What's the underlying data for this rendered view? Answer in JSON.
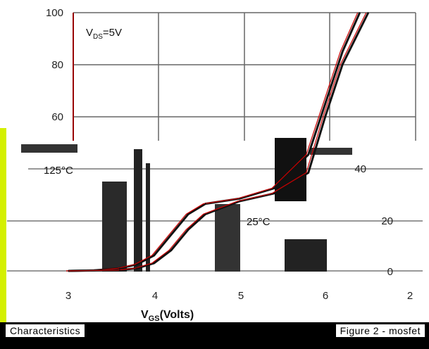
{
  "chart_data": {
    "type": "line",
    "title": "",
    "xlabel": "V_GS(Volts)",
    "ylabel": "",
    "xlim": [
      2.5,
      7.0
    ],
    "ylim": [
      0,
      100
    ],
    "x_ticks": [
      3,
      4,
      5,
      6
    ],
    "y_ticks": [
      60,
      80,
      100
    ],
    "y_ticks_right": [
      0,
      20,
      40
    ],
    "grid": true,
    "annotations": [
      {
        "text": "V_DS=5V"
      },
      {
        "text": "125°C"
      },
      {
        "text": "25°C"
      },
      {
        "text": "2"
      }
    ],
    "series": [
      {
        "name": "125°C",
        "color": "#111111",
        "x": [
          3.0,
          3.3,
          3.6,
          3.8,
          4.0,
          4.2,
          4.4,
          4.6,
          5.0,
          5.4,
          5.8,
          6.0,
          6.2,
          6.4
        ],
        "y": [
          0,
          0.2,
          1,
          2.5,
          6,
          14,
          22,
          26,
          28,
          32,
          45,
          65,
          85,
          100
        ]
      },
      {
        "name": "25°C",
        "color": "#111111",
        "x": [
          3.0,
          3.6,
          3.8,
          4.0,
          4.2,
          4.4,
          4.6,
          5.0,
          5.4,
          5.8,
          6.0,
          6.2,
          6.5
        ],
        "y": [
          0,
          0.3,
          1,
          3,
          8,
          16,
          22,
          27,
          30,
          38,
          60,
          80,
          100
        ]
      }
    ]
  },
  "text": {
    "y100": "100",
    "y80": "80",
    "y60": "60",
    "y40": "40",
    "y20": "20",
    "y0": "0",
    "x3": "3",
    "x4": "4",
    "x5": "5",
    "x6": "6",
    "xextra": "2",
    "vds_main": "V",
    "vds_sub": "DS",
    "vds_rest": "=5V",
    "label_125": "125°C",
    "label_25": "25°C",
    "xlabel_main": "V",
    "xlabel_sub": "GS",
    "xlabel_rest": "(Volts)",
    "caption_left": "Characteristics",
    "caption_right": "Figure 2 - mosfet"
  }
}
